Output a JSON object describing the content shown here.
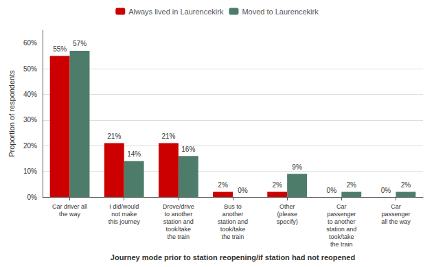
{
  "chart_data": {
    "type": "bar",
    "categories": [
      "Car driver all\nthe way",
      "I did/would\nnot make\nthis journey",
      "Drove/drive\nto another\nstation and\ntook/take\nthe train",
      "Bus to\nanother\nstation and\ntook/take\nthe train",
      "Other\n(please\nspecify)",
      "Car\npassenger\nto another\nstation and\ntook/take\nthe train",
      "Car\npassenger\nall the way"
    ],
    "series": [
      {
        "name": "Always lived in Laurencekirk",
        "color": "#CC0000",
        "values": [
          55,
          21,
          21,
          2,
          2,
          0,
          0
        ],
        "value_labels": [
          "55%",
          "21%",
          "21%",
          "2%",
          "2%",
          "0%",
          "0%"
        ]
      },
      {
        "name": "Moved to Laurencekirk",
        "color": "#4D7C6A",
        "values": [
          57,
          14,
          16,
          0,
          9,
          2,
          2
        ],
        "value_labels": [
          "57%",
          "14%",
          "16%",
          "0%",
          "9%",
          "2%",
          "2%"
        ]
      }
    ],
    "xlabel": "Journey mode prior to station reopening/if station had not reopened",
    "ylabel": "Proportion of respondents",
    "ylim": [
      0,
      65
    ],
    "yticks": [
      {
        "value": 0,
        "label": "0%"
      },
      {
        "value": 10,
        "label": "10%"
      },
      {
        "value": 20,
        "label": "20%"
      },
      {
        "value": 30,
        "label": "30%"
      },
      {
        "value": 40,
        "label": "40%"
      },
      {
        "value": 50,
        "label": "50%"
      },
      {
        "value": 60,
        "label": "60%"
      }
    ],
    "grid": true,
    "legend": "top",
    "data_labels": true
  }
}
